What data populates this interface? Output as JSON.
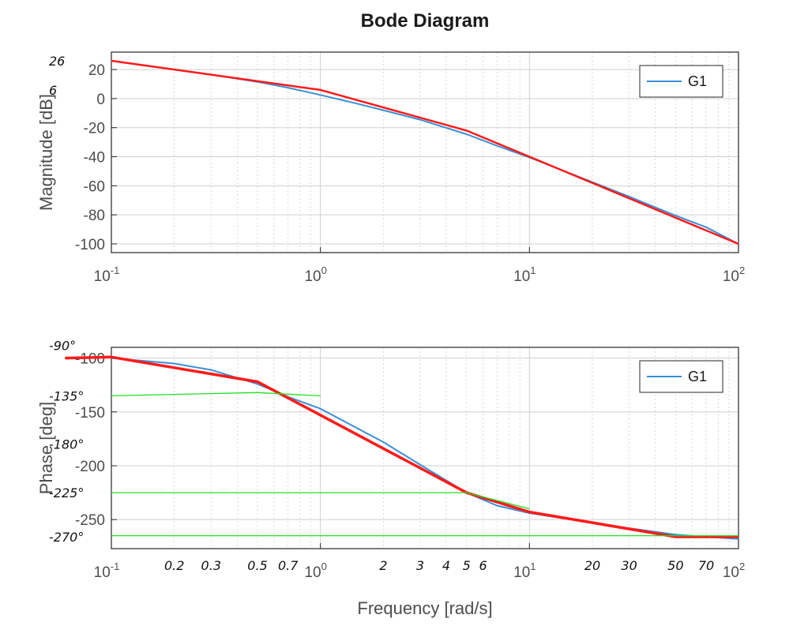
{
  "chart_data": {
    "title": "Bode Diagram",
    "xlabel": "Frequency [rad/s]",
    "x_scale": "log",
    "xlim": [
      0.1,
      100
    ],
    "x_ticks": [
      {
        "value": 0.1,
        "base": "10",
        "exp": "-1"
      },
      {
        "value": 1,
        "base": "10",
        "exp": "0"
      },
      {
        "value": 10,
        "base": "10",
        "exp": "1"
      },
      {
        "value": 100,
        "base": "10",
        "exp": "2"
      }
    ],
    "grid": true,
    "legend_position": "top-right",
    "colors": {
      "G1": "#3a8fd6",
      "asymptote": "#ff1a1a",
      "helper": "#22dd22",
      "axes": "#262626",
      "grid": "#d0d0d0"
    },
    "magnitude": {
      "ylabel": "Magnitude [dB]",
      "ylim": [
        -106,
        32
      ],
      "y_ticks": [
        "20",
        "0",
        "-20",
        "-40",
        "-60",
        "-80",
        "-100"
      ],
      "y_tick_values": [
        20,
        0,
        -20,
        -40,
        -60,
        -80,
        -100
      ],
      "series": [
        {
          "name": "G1",
          "type": "line",
          "x": [
            0.1,
            0.2,
            0.3,
            0.5,
            0.7,
            1,
            1.5,
            2,
            3,
            5,
            7,
            10,
            20,
            30,
            50,
            70,
            100
          ],
          "y": [
            26,
            20,
            16.5,
            11.5,
            7.5,
            2.5,
            -3.5,
            -8,
            -14.5,
            -24.5,
            -32.5,
            -40.5,
            -57.5,
            -67.5,
            -80.5,
            -88.5,
            -100
          ]
        },
        {
          "name": "",
          "type": "asymptote",
          "x": [
            0.1,
            1,
            5,
            10,
            100
          ],
          "y": [
            26,
            6,
            -22,
            -40,
            -100
          ]
        }
      ],
      "annotations": [
        {
          "text": "26",
          "x": 0.1,
          "y": 26
        },
        {
          "text": "6",
          "x": 0.1,
          "y": 6
        }
      ]
    },
    "phase": {
      "ylabel": "Phase [deg]",
      "ylim": [
        -277,
        -90
      ],
      "y_ticks": [
        "-100",
        "-150",
        "-200",
        "-250"
      ],
      "y_tick_values": [
        -100,
        -150,
        -200,
        -250
      ],
      "series": [
        {
          "name": "G1",
          "type": "line",
          "x": [
            0.1,
            0.2,
            0.3,
            0.5,
            0.7,
            1,
            2,
            3,
            5,
            7,
            10,
            20,
            30,
            50,
            70,
            100
          ],
          "y": [
            -100,
            -105,
            -111,
            -124,
            -136,
            -147,
            -178,
            -199,
            -225,
            -237,
            -244,
            -253,
            -258,
            -264,
            -266,
            -268
          ]
        },
        {
          "name": "",
          "type": "asymptote",
          "x": [
            0.06,
            0.1,
            0.5,
            5,
            10,
            50,
            100
          ],
          "y": [
            -100,
            -99,
            -122,
            -225,
            -243,
            -266,
            -266
          ]
        },
        {
          "name": "",
          "type": "helper",
          "x": [
            0.1,
            0.5,
            1
          ],
          "y": [
            -135,
            -132,
            -135
          ]
        },
        {
          "name": "",
          "type": "helper",
          "x": [
            0.1,
            5,
            10
          ],
          "y": [
            -225,
            -225,
            -240
          ]
        },
        {
          "name": "",
          "type": "helper",
          "x": [
            0.1,
            100
          ],
          "y": [
            -265,
            -265
          ]
        }
      ],
      "annotations": [
        {
          "text": "-90°",
          "x": 0.085,
          "y": -88
        },
        {
          "text": "-135°",
          "x": 0.085,
          "y": -135
        },
        {
          "text": "-180°",
          "x": 0.085,
          "y": -180
        },
        {
          "text": "-225°",
          "x": 0.085,
          "y": -225
        },
        {
          "text": "-270°",
          "x": 0.085,
          "y": -266
        }
      ]
    },
    "freq_annotations": [
      "0.2",
      "0.3",
      "0.5",
      "0.7",
      "2",
      "3",
      "4",
      "5",
      "6",
      "20",
      "30",
      "50",
      "70"
    ],
    "freq_annotation_values": [
      0.2,
      0.3,
      0.5,
      0.7,
      2,
      3,
      4,
      5,
      6,
      20,
      30,
      50,
      70
    ]
  }
}
